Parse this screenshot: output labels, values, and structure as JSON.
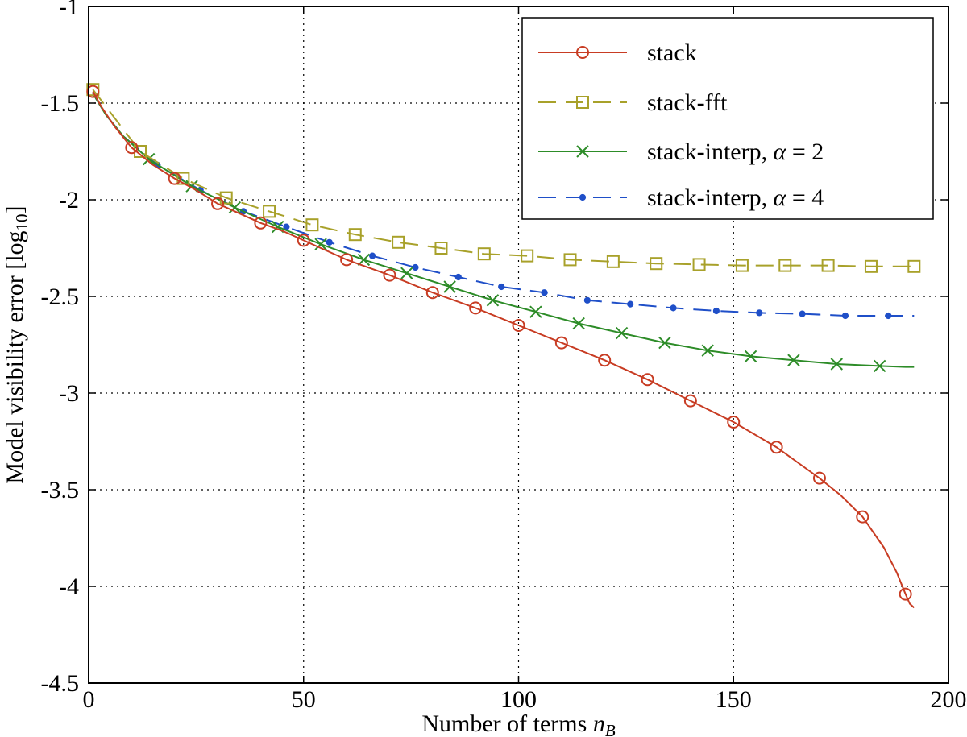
{
  "chart_data": {
    "type": "line",
    "xlabel": "Number of terms",
    "xlabel_math": "n",
    "xlabel_math_sub": "B",
    "ylabel": "Model visibility error [log",
    "ylabel_sub": "10",
    "ylabel_close": "]",
    "xlim": [
      0,
      200
    ],
    "ylim": [
      -4.5,
      -1
    ],
    "xticks": [
      0,
      50,
      100,
      150,
      200
    ],
    "yticks": [
      -1,
      -1.5,
      -2,
      -2.5,
      -3,
      -3.5,
      -4,
      -4.5
    ],
    "xtick_labels": [
      "0",
      "50",
      "100",
      "150",
      "200"
    ],
    "ytick_labels": [
      "-1",
      "-1.5",
      "-2",
      "-2.5",
      "-3",
      "-3.5",
      "-4",
      "-4.5"
    ],
    "grid": true,
    "legend_position": "top-right",
    "series": [
      {
        "name": "stack",
        "color": "#c83c23",
        "line": "solid",
        "marker": "circle",
        "x": [
          1,
          3,
          6,
          10,
          15,
          20,
          25,
          30,
          35,
          40,
          45,
          50,
          60,
          70,
          80,
          90,
          100,
          110,
          120,
          130,
          140,
          150,
          160,
          170,
          175,
          180,
          185,
          188,
          190,
          191,
          192
        ],
        "y": [
          -1.44,
          -1.52,
          -1.62,
          -1.73,
          -1.82,
          -1.89,
          -1.95,
          -2.02,
          -2.07,
          -2.12,
          -2.16,
          -2.21,
          -2.31,
          -2.39,
          -2.48,
          -2.56,
          -2.65,
          -2.74,
          -2.83,
          -2.93,
          -3.04,
          -3.15,
          -3.28,
          -3.44,
          -3.53,
          -3.64,
          -3.8,
          -3.93,
          -4.04,
          -4.09,
          -4.11
        ],
        "marker_x": [
          1,
          10,
          20,
          30,
          40,
          50,
          60,
          70,
          80,
          90,
          100,
          110,
          120,
          130,
          140,
          150,
          160,
          170,
          180,
          190
        ],
        "marker_y": [
          -1.44,
          -1.73,
          -1.89,
          -2.02,
          -2.12,
          -2.21,
          -2.31,
          -2.39,
          -2.48,
          -2.56,
          -2.65,
          -2.74,
          -2.83,
          -2.93,
          -3.04,
          -3.15,
          -3.28,
          -3.44,
          -3.64,
          -4.04
        ]
      },
      {
        "name": "stack-fft",
        "color": "#a8a12a",
        "line": "dashed",
        "marker": "square",
        "x": [
          1,
          12,
          22,
          32,
          42,
          52,
          62,
          72,
          82,
          92,
          102,
          112,
          122,
          132,
          142,
          152,
          162,
          172,
          182,
          192
        ],
        "y": [
          -1.43,
          -1.75,
          -1.89,
          -1.99,
          -2.06,
          -2.13,
          -2.18,
          -2.22,
          -2.25,
          -2.28,
          -2.29,
          -2.31,
          -2.32,
          -2.33,
          -2.335,
          -2.34,
          -2.34,
          -2.34,
          -2.345,
          -2.345
        ],
        "marker_x": [
          1,
          12,
          22,
          32,
          42,
          52,
          62,
          72,
          82,
          92,
          102,
          112,
          122,
          132,
          142,
          152,
          162,
          172,
          182,
          192
        ],
        "marker_y": [
          -1.43,
          -1.75,
          -1.89,
          -1.99,
          -2.06,
          -2.13,
          -2.18,
          -2.22,
          -2.25,
          -2.28,
          -2.29,
          -2.31,
          -2.32,
          -2.33,
          -2.335,
          -2.34,
          -2.34,
          -2.34,
          -2.345,
          -2.345
        ]
      },
      {
        "name": "stack-interp, α = 2",
        "name_plain": "stack-interp,",
        "name_math": "α",
        "name_rest": " = 2",
        "color": "#2d8c28",
        "line": "solid",
        "marker": "x",
        "x": [
          1,
          4,
          8,
          14,
          24,
          34,
          44,
          54,
          64,
          74,
          84,
          94,
          104,
          114,
          124,
          134,
          144,
          154,
          164,
          174,
          184,
          190,
          192
        ],
        "y": [
          -1.45,
          -1.56,
          -1.67,
          -1.79,
          -1.93,
          -2.04,
          -2.14,
          -2.23,
          -2.31,
          -2.38,
          -2.45,
          -2.52,
          -2.58,
          -2.64,
          -2.69,
          -2.74,
          -2.78,
          -2.81,
          -2.83,
          -2.85,
          -2.86,
          -2.865,
          -2.865
        ],
        "marker_x": [
          14,
          24,
          34,
          44,
          54,
          64,
          74,
          84,
          94,
          104,
          114,
          124,
          134,
          144,
          154,
          164,
          174,
          184
        ],
        "marker_y": [
          -1.79,
          -1.93,
          -2.04,
          -2.14,
          -2.23,
          -2.31,
          -2.38,
          -2.45,
          -2.52,
          -2.58,
          -2.64,
          -2.69,
          -2.74,
          -2.78,
          -2.81,
          -2.83,
          -2.85,
          -2.86
        ]
      },
      {
        "name": "stack-interp, α = 4",
        "name_plain": "stack-interp,",
        "name_math": "α",
        "name_rest": " = 4",
        "color": "#1f4fc8",
        "line": "dashed",
        "marker": "dot",
        "x": [
          1,
          4,
          8,
          16,
          26,
          36,
          46,
          56,
          66,
          76,
          86,
          96,
          106,
          116,
          126,
          136,
          146,
          156,
          166,
          176,
          186,
          192
        ],
        "y": [
          -1.45,
          -1.56,
          -1.67,
          -1.82,
          -1.95,
          -2.06,
          -2.14,
          -2.22,
          -2.29,
          -2.35,
          -2.4,
          -2.45,
          -2.48,
          -2.52,
          -2.54,
          -2.56,
          -2.575,
          -2.585,
          -2.59,
          -2.6,
          -2.6,
          -2.6
        ],
        "marker_x": [
          16,
          26,
          36,
          46,
          56,
          66,
          76,
          86,
          96,
          106,
          116,
          126,
          136,
          146,
          156,
          166,
          176,
          186
        ],
        "marker_y": [
          -1.82,
          -1.95,
          -2.06,
          -2.14,
          -2.22,
          -2.29,
          -2.35,
          -2.4,
          -2.45,
          -2.48,
          -2.52,
          -2.54,
          -2.56,
          -2.575,
          -2.585,
          -2.59,
          -2.6,
          -2.6
        ]
      }
    ]
  }
}
